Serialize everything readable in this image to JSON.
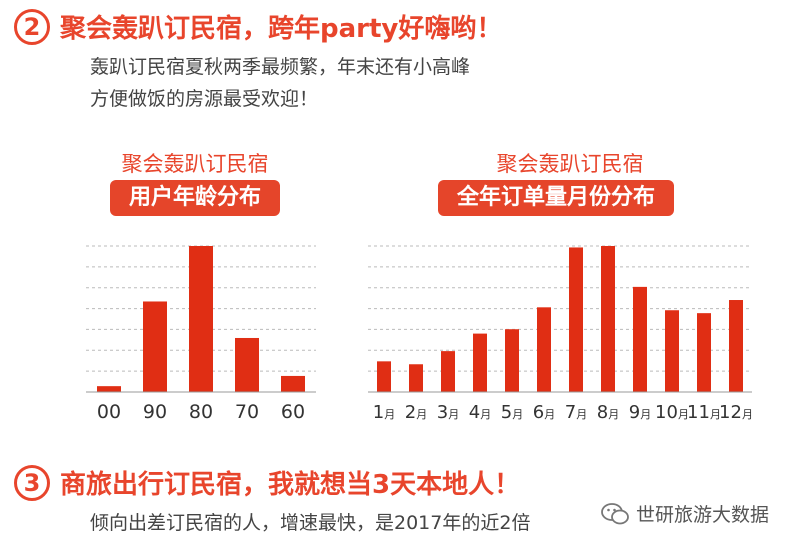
{
  "section2": {
    "number": "2",
    "title": "聚会轰趴订民宿，跨年party好嗨哟！",
    "desc_line1": "轰趴订民宿夏秋两季最频繁，年末还有小高峰",
    "desc_line2": "方便做饭的房源最受欢迎！"
  },
  "chart_left": {
    "caption": "聚会轰趴订民宿",
    "pill": "用户年龄分布"
  },
  "chart_right": {
    "caption": "聚会轰趴订民宿",
    "pill": "全年订单量月份分布"
  },
  "section3": {
    "number": "3",
    "title": "商旅出行订民宿，我就想当3天本地人！",
    "desc": "倾向出差订民宿的人，增速最快，是2017年的近2倍"
  },
  "brand": {
    "name": "世研旅游大数据"
  },
  "colors": {
    "accent": "#e8452c",
    "bar": "#e02e14",
    "grid": "#bbbbbb"
  },
  "chart_data": [
    {
      "type": "bar",
      "title": "用户年龄分布",
      "categories": [
        "00",
        "90",
        "80",
        "70",
        "60"
      ],
      "values": [
        4,
        62,
        100,
        37,
        11
      ],
      "ylim": [
        0,
        100
      ],
      "grid": true,
      "xlabel": "",
      "ylabel": ""
    },
    {
      "type": "bar",
      "title": "全年订单量月份分布",
      "categories": [
        "1月",
        "2月",
        "3月",
        "4月",
        "5月",
        "6月",
        "7月",
        "8月",
        "9月",
        "10月",
        "11月",
        "12月"
      ],
      "tick_numbers": [
        "1",
        "2",
        "3",
        "4",
        "5",
        "6",
        "7",
        "8",
        "9",
        "10",
        "11",
        "12"
      ],
      "tick_unit": "月",
      "values": [
        21,
        19,
        28,
        40,
        43,
        58,
        99,
        100,
        72,
        56,
        54,
        63
      ],
      "ylim": [
        0,
        100
      ],
      "grid": true,
      "xlabel": "",
      "ylabel": ""
    }
  ]
}
